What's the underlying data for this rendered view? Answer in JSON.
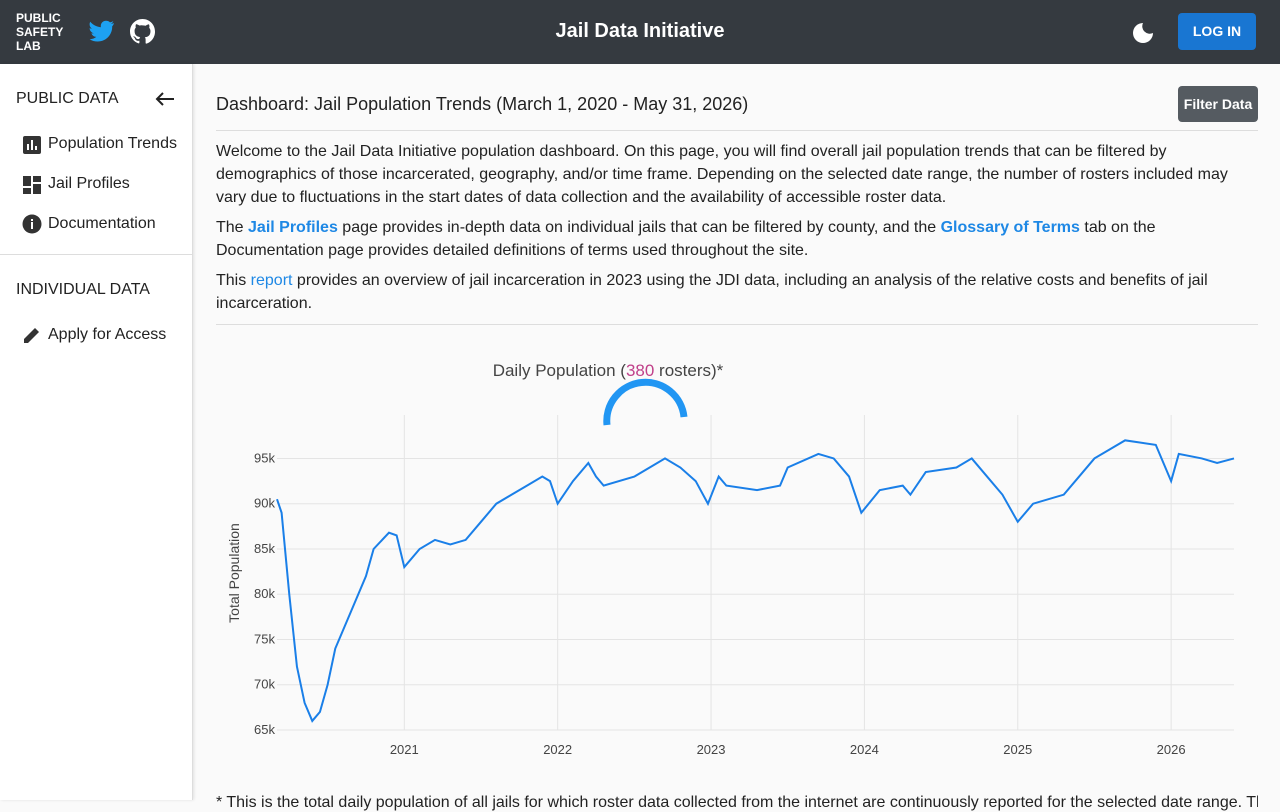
{
  "header": {
    "logo": [
      "PUBLIC",
      "SAFETY",
      "LAB"
    ],
    "title": "Jail Data Initiative",
    "login": "LOG IN"
  },
  "sidebar": {
    "public_heading": "PUBLIC DATA",
    "links": [
      "Population Trends",
      "Jail Profiles",
      "Documentation"
    ],
    "individual_heading": "INDIVIDUAL DATA",
    "apply": "Apply for Access"
  },
  "main": {
    "heading": "Dashboard: Jail Population Trends (March 1, 2020 - May 31, 2026)",
    "filter": "Filter Data",
    "paragraphs": [
      [
        "Welcome to the Jail Data Initiative population dashboard. On this page, you will find overall jail population trends that can be filtered by demographics of those incarcerated, geography, and/or time frame. Depending on the selected date range, the number of rosters included may vary due to fluctuations in the start dates of data collection and the availability of accessible roster data."
      ],
      [
        "The ",
        "Jail Profiles",
        " page provides in-depth data on individual jails that can be filtered by county, and the ",
        "Glossary of Terms",
        " tab on the Documentation page provides detailed definitions of terms used throughout the site."
      ],
      [
        "This ",
        "report",
        " provides an overview of jail incarceration in 2023 using the JDI data, including an analysis of the relative costs and benefits of jail incarceration."
      ]
    ],
    "footnote": "* This is the total daily population of all jails for which roster data collected from the internet are continuously reported for the selected date range. The number of"
  },
  "chart_data": {
    "type": "line",
    "title": {
      "before": "Daily Population (",
      "count": "380",
      "after": " rosters)*"
    },
    "y_label": "Total Population",
    "color": "#1a7fe8",
    "grid": true,
    "x": [
      2020.17,
      2020.2,
      2020.25,
      2020.3,
      2020.35,
      2020.4,
      2020.45,
      2020.5,
      2020.55,
      2020.65,
      2020.75,
      2020.8,
      2020.9,
      2020.95,
      2021.0,
      2021.1,
      2021.2,
      2021.3,
      2021.4,
      2021.5,
      2021.6,
      2021.7,
      2021.8,
      2021.9,
      2021.95,
      2022.0,
      2022.1,
      2022.2,
      2022.25,
      2022.3,
      2022.5,
      2022.6,
      2022.7,
      2022.8,
      2022.9,
      2022.98,
      2023.05,
      2023.1,
      2023.3,
      2023.45,
      2023.5,
      2023.7,
      2023.8,
      2023.9,
      2023.98,
      2024.1,
      2024.25,
      2024.3,
      2024.4,
      2024.6,
      2024.7,
      2024.8,
      2024.9,
      2025.0,
      2025.1,
      2025.3,
      2025.4,
      2025.5,
      2025.6,
      2025.7,
      2025.9,
      2025.95,
      2026.0,
      2026.05,
      2026.2,
      2026.3,
      2026.41
    ],
    "values": [
      90500,
      89000,
      80000,
      72000,
      68000,
      66000,
      67000,
      70000,
      74000,
      78000,
      82000,
      85000,
      86800,
      86500,
      83000,
      85000,
      86000,
      85500,
      86000,
      88000,
      90000,
      91000,
      92000,
      93000,
      92500,
      90000,
      92500,
      94500,
      93000,
      92000,
      93000,
      94000,
      95000,
      94000,
      92500,
      90000,
      93000,
      92000,
      91500,
      92000,
      94000,
      95500,
      95000,
      93000,
      89000,
      91500,
      92000,
      91000,
      93500,
      94000,
      95000,
      93000,
      91000,
      88000,
      90000,
      91000,
      93000,
      95000,
      96000,
      97000,
      96500,
      94500,
      92500,
      95500,
      95000,
      94500,
      95000
    ],
    "xlim": [
      2020.17,
      2026.41
    ],
    "xticks": [
      2021,
      2022,
      2023,
      2024,
      2025,
      2026
    ],
    "ylim": [
      65000,
      99800
    ],
    "yticks": [
      {
        "value": 65000,
        "label": "65k"
      },
      {
        "value": 70000,
        "label": "70k"
      },
      {
        "value": 75000,
        "label": "75k"
      },
      {
        "value": 80000,
        "label": "80k"
      },
      {
        "value": 85000,
        "label": "85k"
      },
      {
        "value": 90000,
        "label": "90k"
      },
      {
        "value": 95000,
        "label": "95k"
      }
    ]
  }
}
